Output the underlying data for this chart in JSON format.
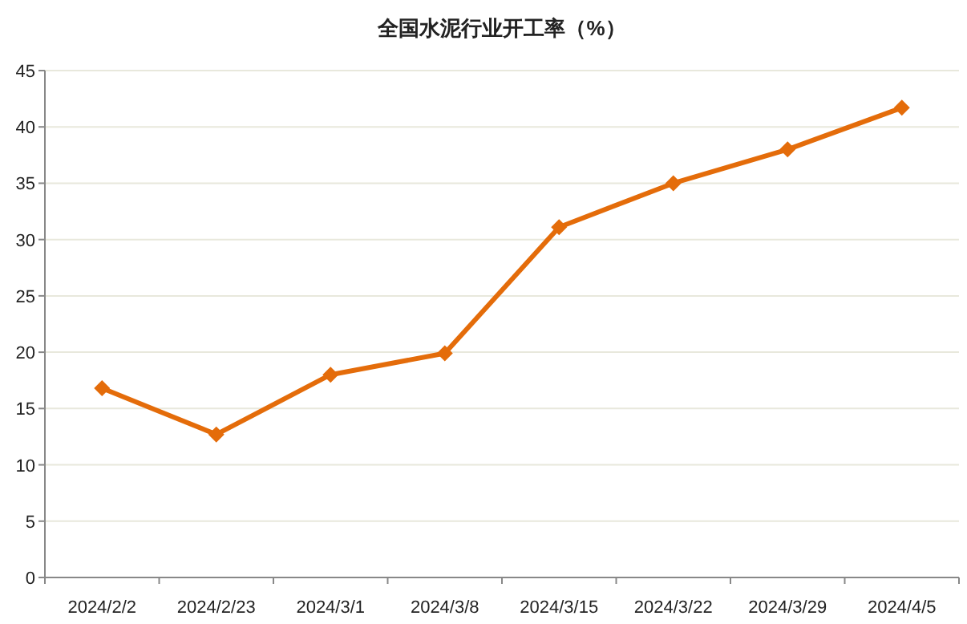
{
  "chart_data": {
    "type": "line",
    "title": "全国水泥行业开工率（%）",
    "categories": [
      "2024/2/2",
      "2024/2/23",
      "2024/3/1",
      "2024/3/8",
      "2024/3/15",
      "2024/3/22",
      "2024/3/29",
      "2024/4/5"
    ],
    "series": [
      {
        "color": "#e46c0a",
        "values": [
          16.8,
          12.7,
          18.0,
          19.9,
          31.1,
          35.0,
          38.0,
          41.7
        ]
      }
    ],
    "ylim": [
      0,
      45
    ],
    "yticks": [
      0,
      5,
      10,
      15,
      20,
      25,
      30,
      35,
      40,
      45
    ],
    "grid": "y",
    "marker": "diamond",
    "line_style": "solid"
  }
}
